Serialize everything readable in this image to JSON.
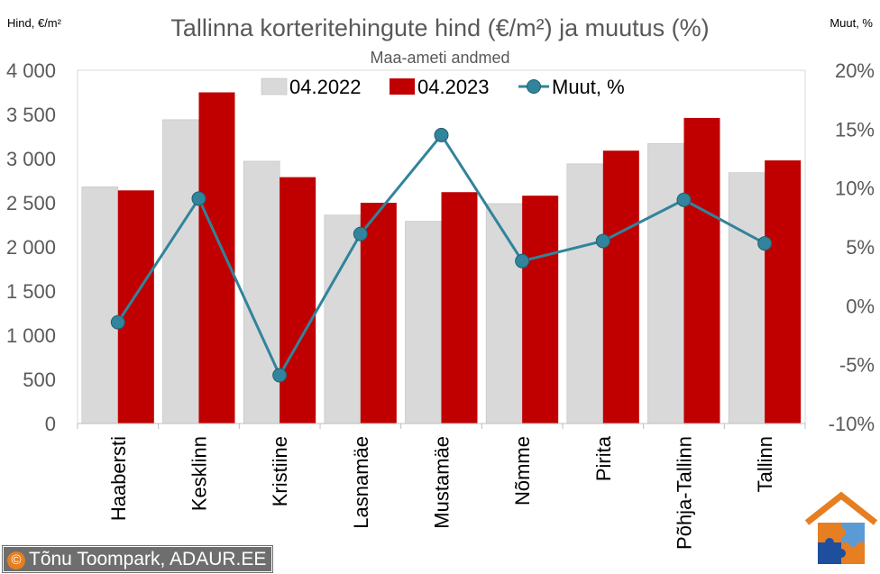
{
  "chart_data": {
    "type": "bar",
    "title": "Tallinna korteritehingute hind (€/m²) ja muutus (%)",
    "subtitle": "Maa-ameti andmed",
    "left_axis_label": "Hind, €/m²",
    "right_axis_label": "Muut, %",
    "categories": [
      "Haabersti",
      "Kesklinn",
      "Kristiine",
      "Lasnamäe",
      "Mustamäe",
      "Nõmme",
      "Pirita",
      "Põhja-Tallinn",
      "Tallinn"
    ],
    "series": [
      {
        "name": "04.2022",
        "type": "bar",
        "axis": "left",
        "color": "#d9d9d9",
        "values": [
          2680,
          3440,
          2970,
          2360,
          2290,
          2490,
          2940,
          3170,
          2840
        ]
      },
      {
        "name": "04.2023",
        "type": "bar",
        "axis": "left",
        "color": "#c00000",
        "values": [
          2640,
          3750,
          2790,
          2500,
          2620,
          2580,
          3090,
          3460,
          2980
        ]
      },
      {
        "name": "Muut, %",
        "type": "line",
        "axis": "right",
        "color": "#31849b",
        "values": [
          -1.4,
          9.1,
          -5.9,
          6.1,
          14.5,
          3.8,
          5.5,
          9.0,
          5.3
        ]
      }
    ],
    "y_left": {
      "min": 0,
      "max": 4000,
      "step": 500,
      "tick_labels": [
        "0",
        "500",
        "1 000",
        "1 500",
        "2 000",
        "2 500",
        "3 000",
        "3 500",
        "4 000"
      ]
    },
    "y_right": {
      "min": -10,
      "max": 20,
      "step": 5,
      "tick_labels": [
        "-10%",
        "-5%",
        "0%",
        "5%",
        "10%",
        "15%",
        "20%"
      ]
    },
    "grid": false,
    "legend_position": "top"
  },
  "copyright": {
    "symbol": "©",
    "text": "Tõnu Toompark, ADAUR.EE"
  },
  "logo": {
    "icon": "house-puzzle-logo",
    "colors": [
      "#e67e22",
      "#1f4e9c",
      "#5b9bd5",
      "#f39c12"
    ]
  }
}
